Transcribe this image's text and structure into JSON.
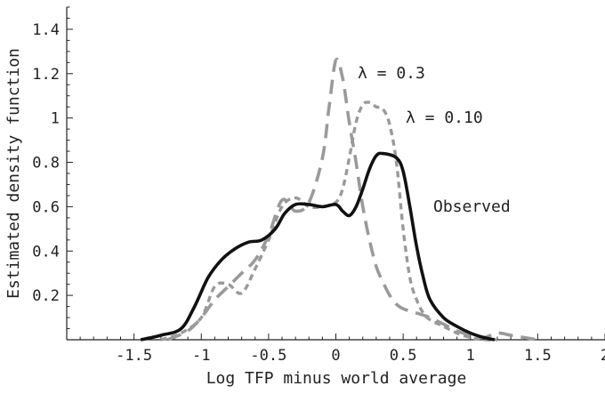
{
  "chart_data": {
    "type": "line",
    "title": "",
    "xlabel": "Log TFP minus world average",
    "ylabel": "Estimated density function",
    "xlim": [
      -2,
      2
    ],
    "ylim": [
      0,
      1.5
    ],
    "x_ticks": [
      -1.5,
      -1,
      -0.5,
      0,
      0.5,
      1,
      1.5,
      2
    ],
    "x_tick_labels": [
      "-1.5",
      "-1",
      "-0.5",
      "0",
      "0.5",
      "1",
      "1.5",
      "2"
    ],
    "y_ticks": [
      0.2,
      0.4,
      0.6,
      0.8,
      1.0,
      1.2,
      1.4
    ],
    "y_tick_labels": [
      "0.2",
      "0.4",
      "0.6",
      "0.8",
      "1",
      "1.2",
      "1.4"
    ],
    "grid": false,
    "series": [
      {
        "name": "Observed",
        "style": "solid",
        "color": "#111111",
        "x": [
          -1.45,
          -1.3,
          -1.15,
          -1.05,
          -0.95,
          -0.85,
          -0.75,
          -0.65,
          -0.55,
          -0.45,
          -0.38,
          -0.3,
          -0.2,
          -0.1,
          0.0,
          0.05,
          0.1,
          0.15,
          0.2,
          0.25,
          0.3,
          0.35,
          0.45,
          0.5,
          0.55,
          0.6,
          0.65,
          0.7,
          0.8,
          0.9,
          1.0,
          1.1,
          1.18
        ],
        "y": [
          0.0,
          0.02,
          0.05,
          0.15,
          0.28,
          0.36,
          0.41,
          0.44,
          0.45,
          0.5,
          0.57,
          0.61,
          0.61,
          0.6,
          0.61,
          0.58,
          0.56,
          0.6,
          0.68,
          0.77,
          0.83,
          0.84,
          0.82,
          0.76,
          0.6,
          0.42,
          0.28,
          0.18,
          0.1,
          0.06,
          0.03,
          0.01,
          0.0
        ]
      },
      {
        "name": "λ = 0.3",
        "style": "long-dash",
        "color": "#9a9a9a",
        "x": [
          -1.25,
          -1.1,
          -1.0,
          -0.9,
          -0.8,
          -0.7,
          -0.6,
          -0.5,
          -0.4,
          -0.3,
          -0.2,
          -0.1,
          -0.05,
          0.0,
          0.05,
          0.1,
          0.15,
          0.2,
          0.25,
          0.3,
          0.35,
          0.4,
          0.45,
          0.5,
          0.6,
          0.7,
          0.8,
          0.9,
          1.0,
          1.1,
          1.2,
          1.3,
          1.4,
          1.5
        ],
        "y": [
          0.0,
          0.04,
          0.1,
          0.18,
          0.24,
          0.3,
          0.36,
          0.47,
          0.63,
          0.58,
          0.62,
          0.82,
          1.05,
          1.26,
          1.18,
          0.98,
          0.8,
          0.6,
          0.45,
          0.33,
          0.26,
          0.2,
          0.16,
          0.14,
          0.12,
          0.1,
          0.07,
          0.04,
          0.02,
          0.01,
          0.03,
          0.02,
          0.01,
          0.0
        ]
      },
      {
        "name": "λ = 0.10",
        "style": "short-dash",
        "color": "#9a9a9a",
        "x": [
          -1.3,
          -1.15,
          -1.0,
          -0.9,
          -0.8,
          -0.7,
          -0.6,
          -0.5,
          -0.4,
          -0.3,
          -0.2,
          -0.1,
          0.0,
          0.05,
          0.1,
          0.15,
          0.2,
          0.25,
          0.3,
          0.35,
          0.4,
          0.45,
          0.5,
          0.55,
          0.6,
          0.65,
          0.7,
          0.8,
          0.9,
          1.0,
          1.1,
          1.2
        ],
        "y": [
          0.0,
          0.03,
          0.1,
          0.24,
          0.25,
          0.21,
          0.32,
          0.45,
          0.6,
          0.64,
          0.6,
          0.6,
          0.62,
          0.68,
          0.82,
          0.98,
          1.06,
          1.07,
          1.05,
          1.04,
          0.97,
          0.8,
          0.5,
          0.28,
          0.18,
          0.12,
          0.09,
          0.06,
          0.03,
          0.01,
          0.0,
          0.0
        ]
      }
    ],
    "annotations": [
      {
        "text": "λ = 0.3",
        "series": "λ = 0.3"
      },
      {
        "text": "λ = 0.10",
        "series": "λ = 0.10"
      },
      {
        "text": "Observed",
        "series": "Observed"
      }
    ]
  }
}
